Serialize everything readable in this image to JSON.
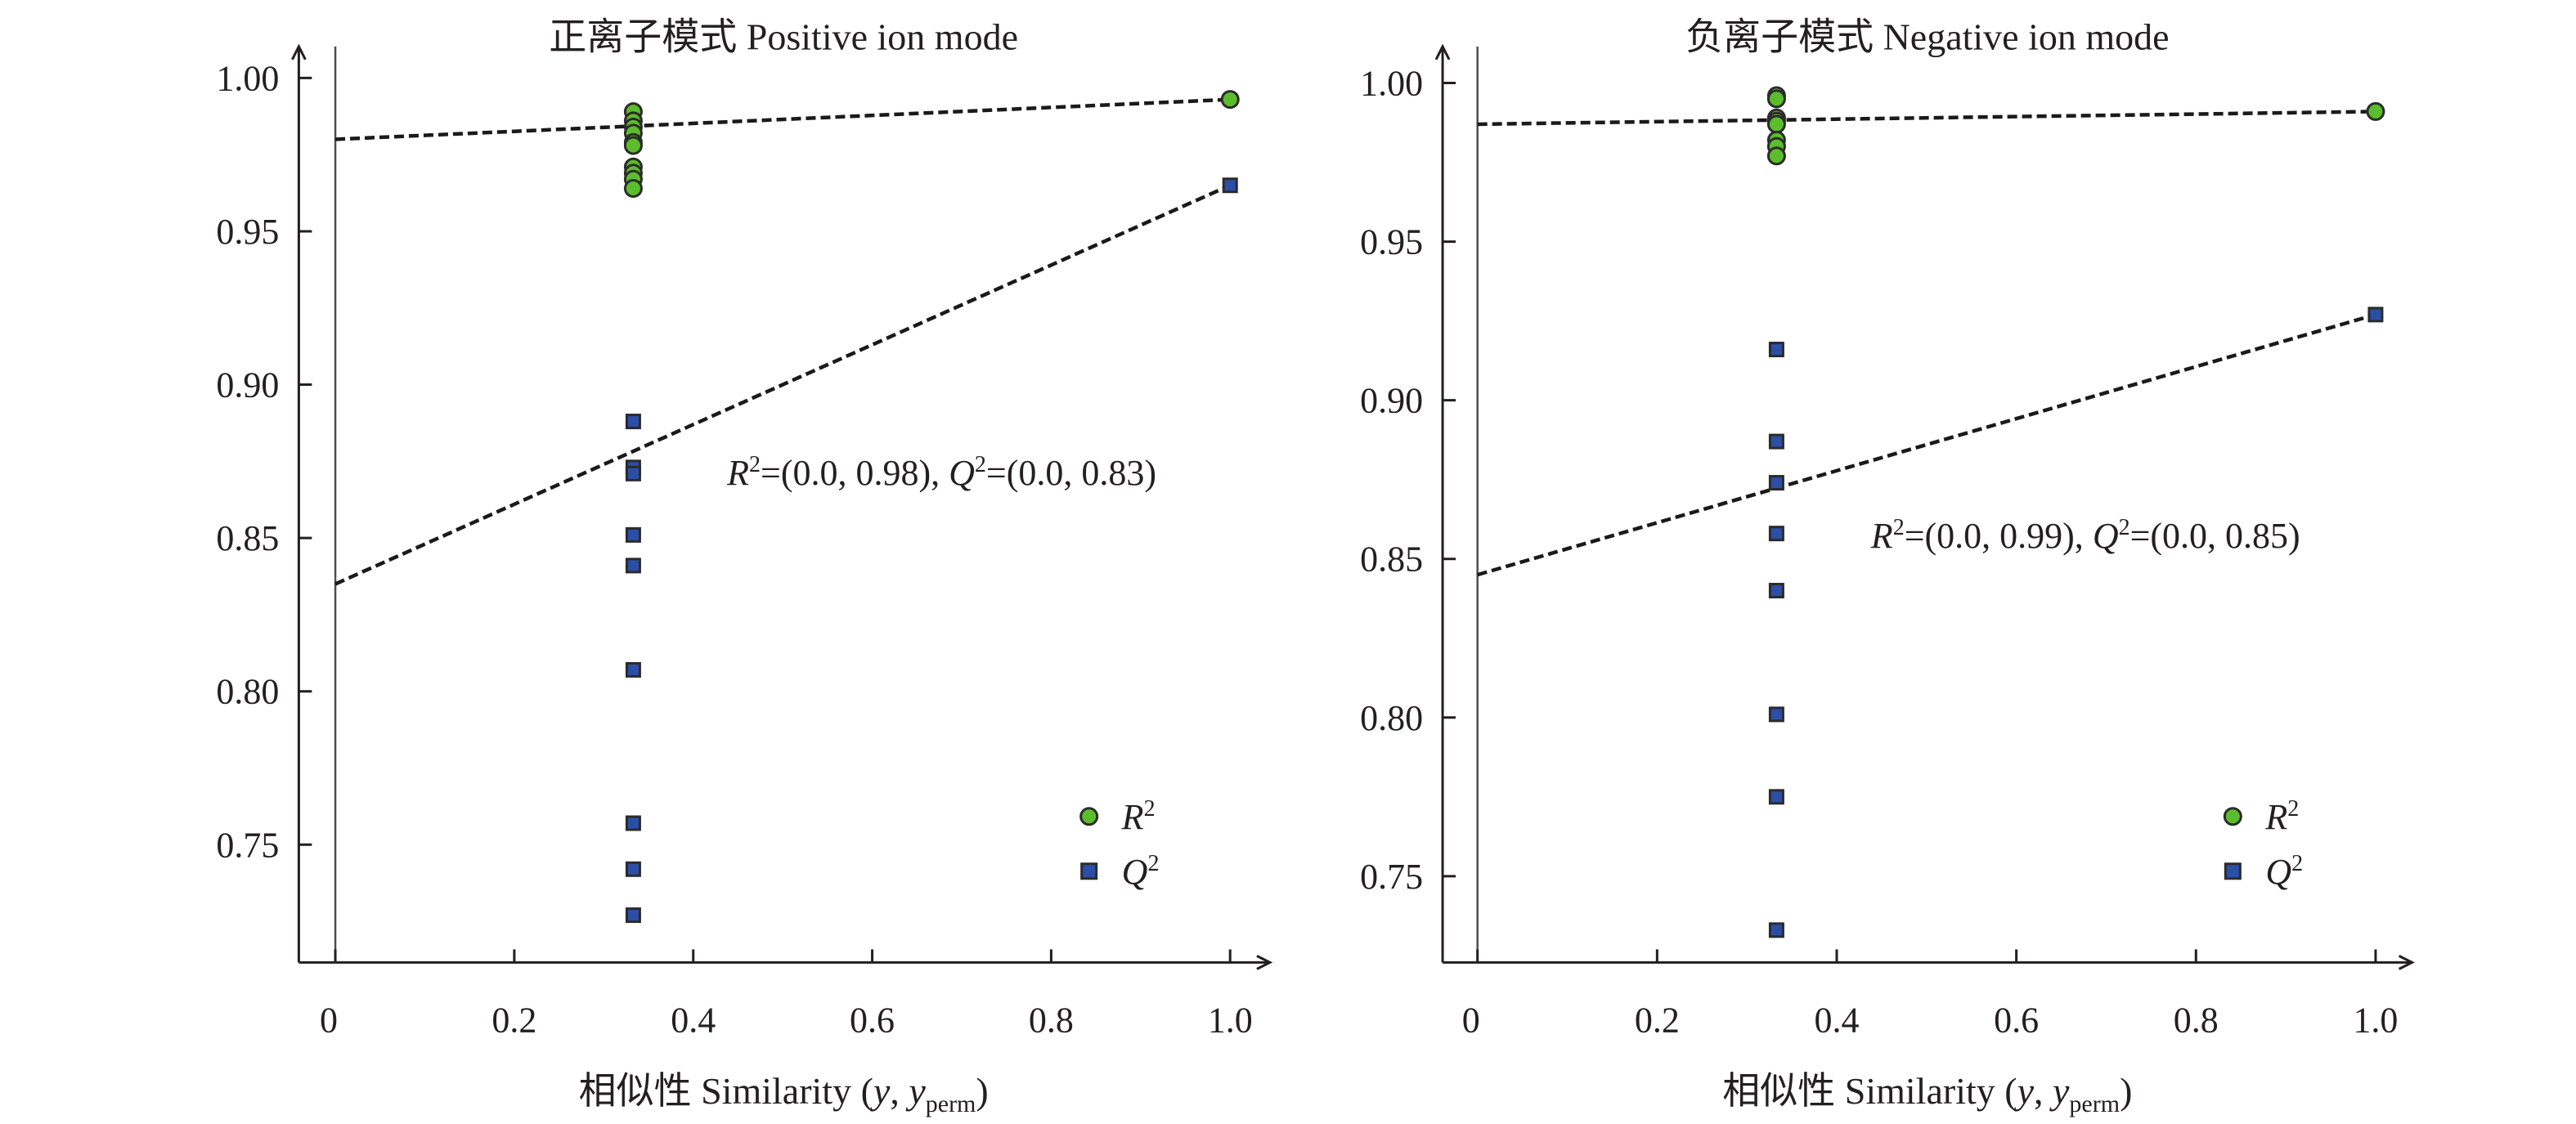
{
  "colors": {
    "r2_fill": "#5bbd2b",
    "q2_fill": "#2b4fa8",
    "marker_stroke": "#2b2b2b",
    "axis": "#231f20",
    "trend": "#1a1a1a"
  },
  "chart_data": [
    {
      "type": "scatter",
      "title": "正离子模式 Positive ion mode",
      "xlabel": "相似性 Similarity (y, y_perm)",
      "xlabel_parts": {
        "prefix": "相似性 Similarity (",
        "y": "y",
        "sep": ", ",
        "yperm_base": "y",
        "yperm_sub": "perm",
        "suffix": ")"
      },
      "ylabel": "",
      "xlim": [
        0,
        1.0
      ],
      "ylim": [
        0.72,
        1.01
      ],
      "xticks": [
        0,
        0.2,
        0.4,
        0.6,
        0.8,
        1.0
      ],
      "xtick_labels": [
        "0",
        "0.2",
        "0.4",
        "0.6",
        "0.8",
        "1.0"
      ],
      "yticks": [
        0.75,
        0.8,
        0.85,
        0.9,
        0.95,
        1.0
      ],
      "ytick_labels": [
        "0.75",
        "0.80",
        "0.85",
        "0.90",
        "0.95",
        "1.00"
      ],
      "grid": false,
      "legend_position": "bottom-right",
      "series": [
        {
          "name": "R2",
          "marker": "circle",
          "points": [
            {
              "x": 0.333,
              "y": 0.989
            },
            {
              "x": 0.333,
              "y": 0.986
            },
            {
              "x": 0.333,
              "y": 0.984
            },
            {
              "x": 0.333,
              "y": 0.982
            },
            {
              "x": 0.333,
              "y": 0.979
            },
            {
              "x": 0.333,
              "y": 0.978
            },
            {
              "x": 0.333,
              "y": 0.971
            },
            {
              "x": 0.333,
              "y": 0.969
            },
            {
              "x": 0.333,
              "y": 0.967
            },
            {
              "x": 0.333,
              "y": 0.964
            },
            {
              "x": 1.0,
              "y": 0.993
            }
          ],
          "trend": {
            "intercept": 0.98,
            "end": 0.993
          }
        },
        {
          "name": "Q2",
          "marker": "square",
          "points": [
            {
              "x": 0.333,
              "y": 0.888
            },
            {
              "x": 0.333,
              "y": 0.873
            },
            {
              "x": 0.333,
              "y": 0.871
            },
            {
              "x": 0.333,
              "y": 0.851
            },
            {
              "x": 0.333,
              "y": 0.841
            },
            {
              "x": 0.333,
              "y": 0.807
            },
            {
              "x": 0.333,
              "y": 0.757
            },
            {
              "x": 0.333,
              "y": 0.742
            },
            {
              "x": 0.333,
              "y": 0.727
            },
            {
              "x": 1.0,
              "y": 0.965
            }
          ],
          "trend": {
            "intercept": 0.835,
            "end": 0.965
          }
        }
      ],
      "annotation": {
        "r_label": "R",
        "r_sup": "2",
        "r_value": "=(0.0, 0.98), ",
        "q_label": "Q",
        "q_sup": "2",
        "q_value": "=(0.0, 0.83)",
        "text": "R2=(0.0, 0.98), Q2=(0.0, 0.83)"
      },
      "legend": [
        {
          "label": "R",
          "sup": "2",
          "marker": "circle"
        },
        {
          "label": "Q",
          "sup": "2",
          "marker": "square"
        }
      ]
    },
    {
      "type": "scatter",
      "title": "负离子模式 Negative ion mode",
      "xlabel": "相似性 Similarity (y, y_perm)",
      "xlabel_parts": {
        "prefix": "相似性 Similarity (",
        "y": "y",
        "sep": ", ",
        "yperm_base": "y",
        "yperm_sub": "perm",
        "suffix": ")"
      },
      "ylabel": "",
      "xlim": [
        0,
        1.0
      ],
      "ylim": [
        0.725,
        1.01
      ],
      "xticks": [
        0,
        0.2,
        0.4,
        0.6,
        0.8,
        1.0
      ],
      "xtick_labels": [
        "0",
        "0.2",
        "0.4",
        "0.6",
        "0.8",
        "1.0"
      ],
      "yticks": [
        0.75,
        0.8,
        0.85,
        0.9,
        0.95,
        1.0
      ],
      "ytick_labels": [
        "0.75",
        "0.80",
        "0.85",
        "0.90",
        "0.95",
        "1.00"
      ],
      "grid": false,
      "legend_position": "bottom-right",
      "series": [
        {
          "name": "R2",
          "marker": "circle",
          "points": [
            {
              "x": 0.333,
              "y": 0.996
            },
            {
              "x": 0.333,
              "y": 0.995
            },
            {
              "x": 0.333,
              "y": 0.989
            },
            {
              "x": 0.333,
              "y": 0.988
            },
            {
              "x": 0.333,
              "y": 0.987
            },
            {
              "x": 0.333,
              "y": 0.982
            },
            {
              "x": 0.333,
              "y": 0.98
            },
            {
              "x": 0.333,
              "y": 0.977
            },
            {
              "x": 1.0,
              "y": 0.991
            }
          ],
          "trend": {
            "intercept": 0.987,
            "end": 0.991
          }
        },
        {
          "name": "Q2",
          "marker": "square",
          "points": [
            {
              "x": 0.333,
              "y": 0.916
            },
            {
              "x": 0.333,
              "y": 0.887
            },
            {
              "x": 0.333,
              "y": 0.874
            },
            {
              "x": 0.333,
              "y": 0.858
            },
            {
              "x": 0.333,
              "y": 0.84
            },
            {
              "x": 0.333,
              "y": 0.801
            },
            {
              "x": 0.333,
              "y": 0.775
            },
            {
              "x": 0.333,
              "y": 0.733
            },
            {
              "x": 1.0,
              "y": 0.927
            }
          ],
          "trend": {
            "intercept": 0.845,
            "end": 0.927
          }
        }
      ],
      "annotation": {
        "r_label": "R",
        "r_sup": "2",
        "r_value": "=(0.0, 0.99), ",
        "q_label": "Q",
        "q_sup": "2",
        "q_value": "=(0.0, 0.85)",
        "text": "R2=(0.0, 0.99), Q2=(0.0, 0.85)"
      },
      "legend": [
        {
          "label": "R",
          "sup": "2",
          "marker": "circle"
        },
        {
          "label": "Q",
          "sup": "2",
          "marker": "square"
        }
      ]
    }
  ]
}
